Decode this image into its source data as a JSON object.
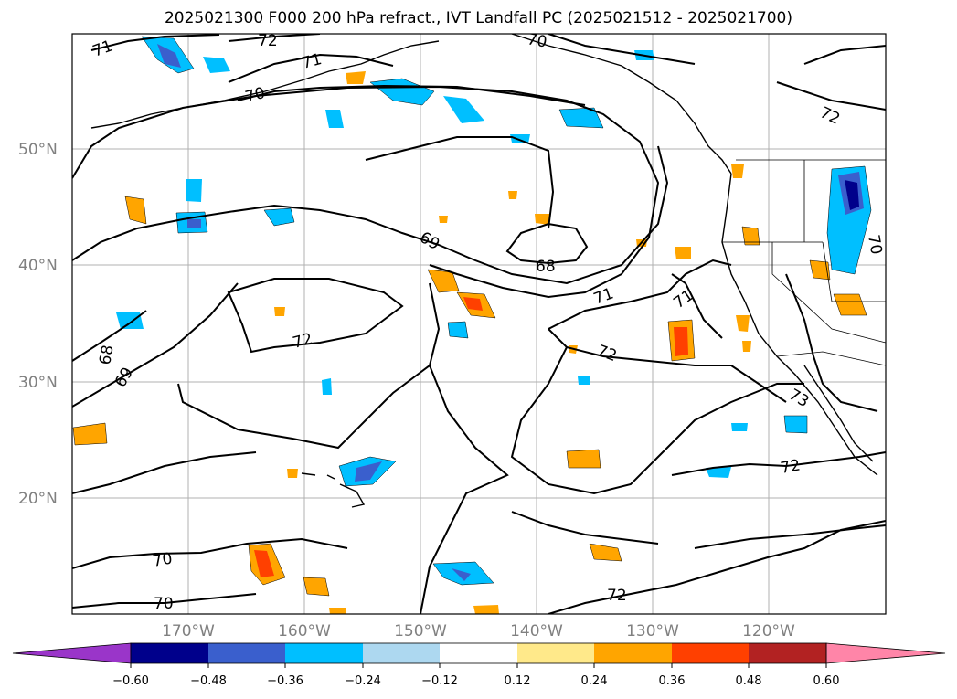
{
  "title": "2025021300 F000 200 hPa refract., IVT Landfall PC (2025021512 - 2025021700)",
  "map": {
    "lat_ticks": [
      {
        "label": "50°N",
        "value": 50
      },
      {
        "label": "40°N",
        "value": 40
      },
      {
        "label": "30°N",
        "value": 30
      },
      {
        "label": "20°N",
        "value": 20
      }
    ],
    "lon_ticks": [
      {
        "label": "170°W",
        "value": -170
      },
      {
        "label": "160°W",
        "value": -160
      },
      {
        "label": "150°W",
        "value": -150
      },
      {
        "label": "140°W",
        "value": -140
      },
      {
        "label": "130°W",
        "value": -130
      },
      {
        "label": "120°W",
        "value": -120
      }
    ],
    "contour_labels": [
      "71",
      "72",
      "71",
      "70",
      "70",
      "72",
      "69",
      "68",
      "71",
      "71",
      "72",
      "72",
      "68",
      "69",
      "70",
      "70",
      "72",
      "72",
      "73",
      "70"
    ]
  },
  "colorbar": {
    "tick_labels": [
      "−0.60",
      "−0.48",
      "−0.36",
      "−0.24",
      "−0.12",
      "0.12",
      "0.24",
      "0.36",
      "0.48",
      "0.60"
    ],
    "colors": [
      "#9a35c9",
      "#00008b",
      "#3a5fcd",
      "#00bfff",
      "#add8f0",
      "#ffffff",
      "#ffe98a",
      "#ffa500",
      "#ff4000",
      "#b22222",
      "#ff85a8"
    ]
  }
}
